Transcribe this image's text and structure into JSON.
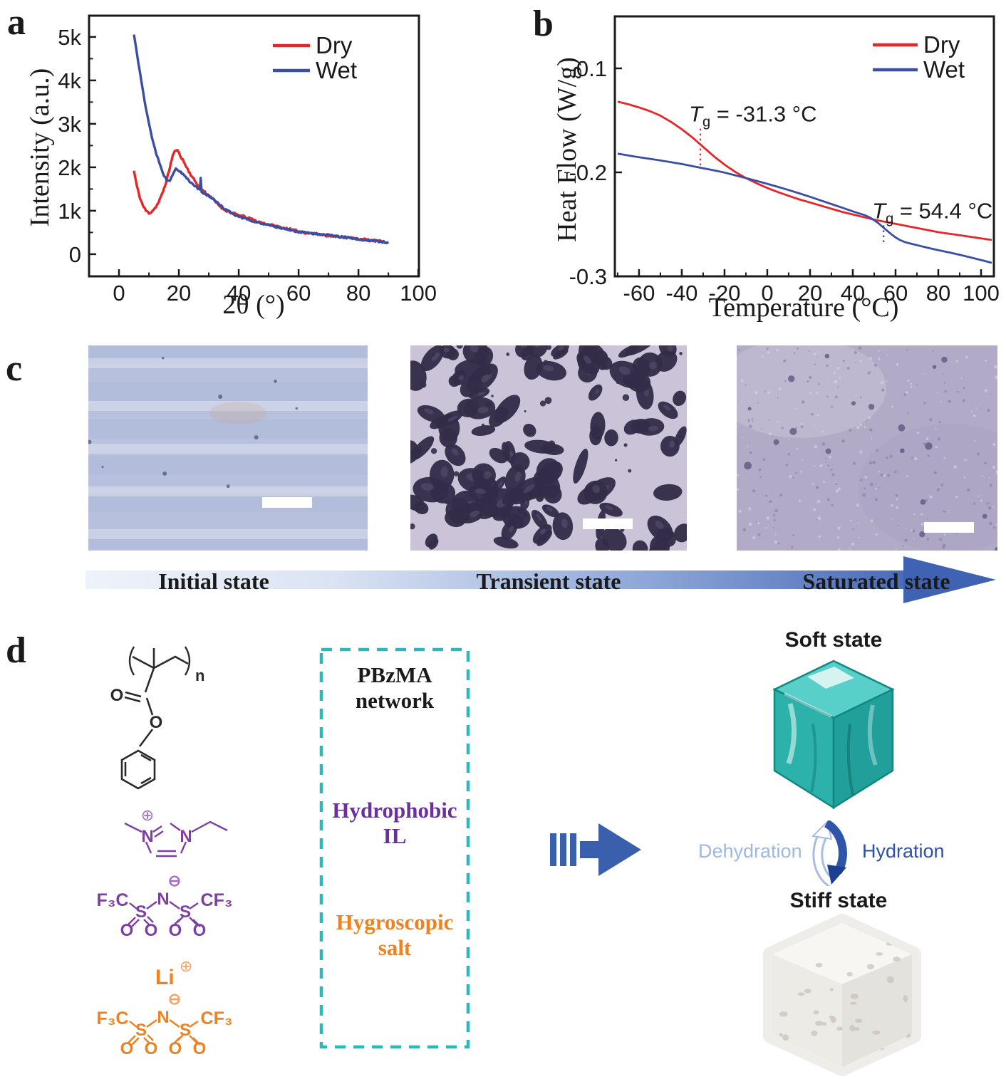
{
  "panels": {
    "a": "a",
    "b": "b",
    "c": "c",
    "d": "d"
  },
  "chart_data": [
    {
      "id": "xrd",
      "type": "line",
      "title": "",
      "xlabel": "2θ (°)",
      "ylabel": "Intensity (a.u.)",
      "xlim": [
        -10,
        100.2
      ],
      "ylim": [
        -510,
        5490
      ],
      "grid": false,
      "legend_position": "top-right-inside",
      "xticks": [
        {
          "v": 0,
          "l": "0"
        },
        {
          "v": 20,
          "l": "20"
        },
        {
          "v": 40,
          "l": "40"
        },
        {
          "v": 60,
          "l": "60"
        },
        {
          "v": 80,
          "l": "80"
        },
        {
          "v": 100,
          "l": "100"
        }
      ],
      "xminor": [
        10,
        30,
        50,
        70,
        90
      ],
      "yticks": [
        {
          "v": 0,
          "l": "0"
        },
        {
          "v": 1000,
          "l": "1k"
        },
        {
          "v": 2000,
          "l": "2k"
        },
        {
          "v": 3000,
          "l": "3k"
        },
        {
          "v": 4000,
          "l": "4k"
        },
        {
          "v": 5000,
          "l": "5k"
        }
      ],
      "yminor": [
        500,
        1500,
        2500,
        3500,
        4500
      ],
      "series": [
        {
          "name": "Dry",
          "color": "#e62628",
          "noise": 26,
          "width": 3.4,
          "points": [
            [
              5,
              1920
            ],
            [
              6,
              1560
            ],
            [
              7,
              1300
            ],
            [
              8,
              1120
            ],
            [
              9,
              1000
            ],
            [
              10,
              950
            ],
            [
              10.5,
              960
            ],
            [
              11,
              990
            ],
            [
              12,
              1060
            ],
            [
              13,
              1160
            ],
            [
              14,
              1310
            ],
            [
              15,
              1500
            ],
            [
              16,
              1720
            ],
            [
              17,
              2000
            ],
            [
              18,
              2280
            ],
            [
              19,
              2400
            ],
            [
              19.5,
              2380
            ],
            [
              20,
              2330
            ],
            [
              21,
              2210
            ],
            [
              22,
              2080
            ],
            [
              23,
              1950
            ],
            [
              24,
              1830
            ],
            [
              25,
              1720
            ],
            [
              26,
              1620
            ],
            [
              27,
              1540
            ],
            [
              28,
              1470
            ],
            [
              29,
              1410
            ],
            [
              30,
              1350
            ],
            [
              31,
              1290
            ],
            [
              32,
              1220
            ],
            [
              33,
              1150
            ],
            [
              34,
              1090
            ],
            [
              35,
              1040
            ],
            [
              36,
              1000
            ],
            [
              37,
              970
            ],
            [
              38,
              940
            ],
            [
              39,
              920
            ],
            [
              40,
              900
            ],
            [
              42,
              860
            ],
            [
              44,
              810
            ],
            [
              46,
              760
            ],
            [
              48,
              720
            ],
            [
              50,
              680
            ],
            [
              52,
              650
            ],
            [
              54,
              620
            ],
            [
              56,
              590
            ],
            [
              58,
              555
            ],
            [
              60,
              525
            ],
            [
              62,
              500
            ],
            [
              64,
              480
            ],
            [
              66,
              462
            ],
            [
              68,
              445
            ],
            [
              70,
              430
            ],
            [
              72,
              415
            ],
            [
              74,
              400
            ],
            [
              76,
              385
            ],
            [
              78,
              368
            ],
            [
              80,
              350
            ],
            [
              82,
              335
            ],
            [
              84,
              318
            ],
            [
              86,
              302
            ],
            [
              88,
              290
            ],
            [
              90,
              282
            ]
          ]
        },
        {
          "name": "Wet",
          "color": "#3b4fa2",
          "noise": 22,
          "width": 3.4,
          "points": [
            [
              5,
              5060
            ],
            [
              5.5,
              4840
            ],
            [
              6,
              4620
            ],
            [
              6.5,
              4400
            ],
            [
              7,
              4180
            ],
            [
              7.5,
              3970
            ],
            [
              8,
              3760
            ],
            [
              8.5,
              3560
            ],
            [
              9,
              3370
            ],
            [
              9.5,
              3190
            ],
            [
              10,
              3020
            ],
            [
              10.5,
              2860
            ],
            [
              11,
              2700
            ],
            [
              11.5,
              2560
            ],
            [
              12,
              2430
            ],
            [
              12.5,
              2310
            ],
            [
              13,
              2200
            ],
            [
              13.5,
              2090
            ],
            [
              14,
              1990
            ],
            [
              14.5,
              1900
            ],
            [
              15,
              1820
            ],
            [
              15.5,
              1760
            ],
            [
              16,
              1700
            ],
            [
              16.5,
              1680
            ],
            [
              17,
              1700
            ],
            [
              17.5,
              1760
            ],
            [
              18,
              1850
            ],
            [
              18.5,
              1920
            ],
            [
              19,
              1960
            ],
            [
              19.5,
              1950
            ],
            [
              20,
              1920
            ],
            [
              21,
              1860
            ],
            [
              22,
              1790
            ],
            [
              23,
              1720
            ],
            [
              24,
              1650
            ],
            [
              25,
              1590
            ],
            [
              26,
              1530
            ],
            [
              27,
              1480
            ],
            [
              27.3,
              1760
            ],
            [
              27.6,
              1440
            ],
            [
              28,
              1420
            ],
            [
              29,
              1380
            ],
            [
              30,
              1340
            ],
            [
              31,
              1290
            ],
            [
              32,
              1230
            ],
            [
              33,
              1170
            ],
            [
              34,
              1110
            ],
            [
              35,
              1060
            ],
            [
              36,
              1010
            ],
            [
              37,
              970
            ],
            [
              38,
              930
            ],
            [
              39,
              900
            ],
            [
              40,
              870
            ],
            [
              42,
              820
            ],
            [
              44,
              780
            ],
            [
              46,
              740
            ],
            [
              48,
              700
            ],
            [
              50,
              665
            ],
            [
              52,
              635
            ],
            [
              54,
              605
            ],
            [
              56,
              575
            ],
            [
              58,
              545
            ],
            [
              60,
              515
            ],
            [
              62,
              495
            ],
            [
              64,
              478
            ],
            [
              66,
              462
            ],
            [
              68,
              450
            ],
            [
              70,
              438
            ],
            [
              72,
              420
            ],
            [
              74,
              402
            ],
            [
              76,
              385
            ],
            [
              78,
              365
            ],
            [
              80,
              348
            ],
            [
              82,
              332
            ],
            [
              84,
              316
            ],
            [
              86,
              300
            ],
            [
              88,
              285
            ],
            [
              90,
              272
            ]
          ]
        }
      ],
      "annotations": []
    },
    {
      "id": "dsc",
      "type": "line",
      "title": "",
      "xlabel": "Temperature (°C)",
      "ylabel": "Heat Flow (W/g)",
      "xlim": [
        -71.3,
        106
      ],
      "ylim": [
        -0.3,
        -0.05
      ],
      "grid": false,
      "legend_position": "top-right-inside",
      "xticks": [
        {
          "v": -60,
          "l": "-60"
        },
        {
          "v": -40,
          "l": "-40"
        },
        {
          "v": -20,
          "l": "-20"
        },
        {
          "v": 0,
          "l": "0"
        },
        {
          "v": 20,
          "l": "20"
        },
        {
          "v": 40,
          "l": "40"
        },
        {
          "v": 60,
          "l": "60"
        },
        {
          "v": 80,
          "l": "80"
        },
        {
          "v": 100,
          "l": "100"
        }
      ],
      "xminor": [
        -70,
        -50,
        -30,
        -10,
        10,
        30,
        50,
        70,
        90
      ],
      "yticks": [
        {
          "v": -0.1,
          "l": "-0.1"
        },
        {
          "v": -0.2,
          "l": "-0.2"
        },
        {
          "v": -0.3,
          "l": "-0.3"
        }
      ],
      "yminor": [],
      "series": [
        {
          "name": "Dry",
          "color": "#e62628",
          "noise": 0,
          "width": 2.8,
          "points": [
            [
              -70,
              -0.132
            ],
            [
              -65,
              -0.1345
            ],
            [
              -60,
              -0.1375
            ],
            [
              -55,
              -0.141
            ],
            [
              -50,
              -0.1455
            ],
            [
              -45,
              -0.1515
            ],
            [
              -40,
              -0.1585
            ],
            [
              -35,
              -0.1665
            ],
            [
              -30,
              -0.1755
            ],
            [
              -25,
              -0.1845
            ],
            [
              -20,
              -0.1925
            ],
            [
              -15,
              -0.1995
            ],
            [
              -10,
              -0.2055
            ],
            [
              -5,
              -0.2105
            ],
            [
              0,
              -0.215
            ],
            [
              5,
              -0.219
            ],
            [
              10,
              -0.2225
            ],
            [
              15,
              -0.226
            ],
            [
              20,
              -0.229
            ],
            [
              25,
              -0.232
            ],
            [
              30,
              -0.235
            ],
            [
              35,
              -0.238
            ],
            [
              40,
              -0.2405
            ],
            [
              45,
              -0.243
            ],
            [
              50,
              -0.2455
            ],
            [
              55,
              -0.2475
            ],
            [
              60,
              -0.2495
            ],
            [
              65,
              -0.2515
            ],
            [
              70,
              -0.2535
            ],
            [
              75,
              -0.2555
            ],
            [
              80,
              -0.2575
            ],
            [
              85,
              -0.259
            ],
            [
              90,
              -0.2605
            ],
            [
              95,
              -0.262
            ],
            [
              100,
              -0.2635
            ],
            [
              105,
              -0.265
            ]
          ]
        },
        {
          "name": "Wet",
          "color": "#3b4fa2",
          "noise": 0,
          "width": 2.8,
          "points": [
            [
              -70,
              -0.182
            ],
            [
              -65,
              -0.1838
            ],
            [
              -60,
              -0.1855
            ],
            [
              -55,
              -0.187
            ],
            [
              -50,
              -0.1885
            ],
            [
              -45,
              -0.1902
            ],
            [
              -40,
              -0.192
            ],
            [
              -35,
              -0.194
            ],
            [
              -30,
              -0.196
            ],
            [
              -25,
              -0.198
            ],
            [
              -20,
              -0.2002
            ],
            [
              -15,
              -0.2028
            ],
            [
              -10,
              -0.2055
            ],
            [
              -5,
              -0.2082
            ],
            [
              0,
              -0.211
            ],
            [
              5,
              -0.214
            ],
            [
              10,
              -0.217
            ],
            [
              15,
              -0.2202
            ],
            [
              20,
              -0.2235
            ],
            [
              25,
              -0.227
            ],
            [
              30,
              -0.2305
            ],
            [
              35,
              -0.234
            ],
            [
              40,
              -0.2375
            ],
            [
              43,
              -0.2395
            ],
            [
              46,
              -0.2415
            ],
            [
              48,
              -0.2435
            ],
            [
              50,
              -0.246
            ],
            [
              52,
              -0.249
            ],
            [
              54,
              -0.2525
            ],
            [
              56,
              -0.256
            ],
            [
              58,
              -0.2595
            ],
            [
              60,
              -0.2625
            ],
            [
              62,
              -0.265
            ],
            [
              64,
              -0.2668
            ],
            [
              66,
              -0.268
            ],
            [
              68,
              -0.269
            ],
            [
              70,
              -0.27
            ],
            [
              75,
              -0.2725
            ],
            [
              80,
              -0.2748
            ],
            [
              85,
              -0.277
            ],
            [
              90,
              -0.2793
            ],
            [
              95,
              -0.2818
            ],
            [
              100,
              -0.2843
            ],
            [
              105,
              -0.287
            ]
          ]
        }
      ],
      "annotations": [
        {
          "sym": "T",
          "sub": "g",
          "rest": " = -31.3 °C",
          "x": -31.3,
          "line_y": [
            -0.158,
            -0.195
          ],
          "color": "#e62628"
        },
        {
          "sym": "T",
          "sub": "g",
          "rest": " = 54.4 °C",
          "x": 54.4,
          "line_y": [
            -0.251,
            -0.27
          ],
          "color": "#3b4fa2"
        }
      ]
    }
  ],
  "micrographs": {
    "states": [
      {
        "label": "Initial state"
      },
      {
        "label": "Transient state"
      },
      {
        "label": "Saturated state"
      }
    ]
  },
  "schematic": {
    "box_labels": [
      {
        "line1": "PBzMA",
        "line2": "network",
        "color": "#1a1a1a"
      },
      {
        "line1": "Hydrophobic",
        "line2": "IL",
        "color": "#6b2f9e"
      },
      {
        "line1": "Hygroscopic",
        "line2": "salt",
        "color": "#f0811e"
      }
    ],
    "soft_state": "Soft state",
    "stiff_state": "Stiff state",
    "dehydration": "Dehydration",
    "hydration": "Hydration"
  },
  "structures": {
    "monomer": {
      "o_carbonyl": "O",
      "o_ester": "O",
      "repeat": "n"
    },
    "cation": {
      "n_left": "N",
      "n_right": "N",
      "plus": "⊕"
    },
    "tfsi": {
      "f3c": "F₃C",
      "s1": "S",
      "n": "N",
      "s2": "S",
      "cf3": "CF₃",
      "o1": "O",
      "o2": "O",
      "o3": "O",
      "o4": "O",
      "minus": "⊖"
    },
    "li": {
      "label": "Li",
      "plus": "⊕"
    }
  },
  "colors": {
    "dry": "#e62628",
    "wet": "#3b4fa2",
    "il_purple": "#7d3fa3",
    "salt_orange": "#f0811e",
    "box_teal": "#29b9bc",
    "arrow_blue": "#3a5fad",
    "soft_teal": "#2cb2ab",
    "dehydration_text": "#9db9e0",
    "hydration_text": "#2d50a7"
  }
}
